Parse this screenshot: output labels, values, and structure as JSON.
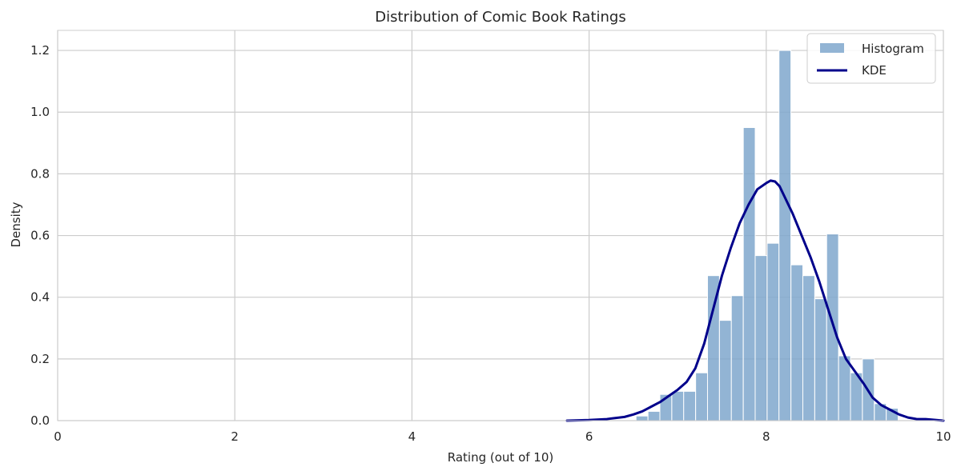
{
  "chart_data": {
    "type": "bar",
    "title": "Distribution of Comic Book Ratings",
    "xlabel": "Rating (out of 10)",
    "ylabel": "Density",
    "xlim": [
      0,
      10
    ],
    "ylim": [
      0,
      1.265
    ],
    "xticks": [
      0,
      2,
      4,
      6,
      8,
      10
    ],
    "xtick_labels": [
      "0",
      "2",
      "4",
      "6",
      "8",
      "10"
    ],
    "yticks": [
      0.0,
      0.2,
      0.4,
      0.6,
      0.8,
      1.0,
      1.2
    ],
    "ytick_labels": [
      "0.0",
      "0.2",
      "0.4",
      "0.6",
      "0.8",
      "1.0",
      "1.2"
    ],
    "grid": true,
    "legend_position": "top-right",
    "histogram": {
      "name": "Histogram",
      "color": "#7fa7cc",
      "bin_width": 0.1345,
      "bin_starts": [
        6.53,
        6.665,
        6.799,
        6.934,
        7.068,
        7.203,
        7.337,
        7.472,
        7.606,
        7.741,
        7.875,
        8.01,
        8.144,
        8.279,
        8.413,
        8.548,
        8.682,
        8.817,
        8.951,
        9.086,
        9.221,
        9.355
      ],
      "values": [
        0.015,
        0.03,
        0.085,
        0.095,
        0.095,
        0.155,
        0.47,
        0.325,
        0.405,
        0.95,
        0.535,
        0.575,
        1.2,
        0.505,
        0.47,
        0.395,
        0.605,
        0.21,
        0.155,
        0.2,
        0.055,
        0.04
      ]
    },
    "kde": {
      "name": "KDE",
      "color": "#00008b",
      "x": [
        5.75,
        6.0,
        6.2,
        6.4,
        6.5,
        6.6,
        6.7,
        6.8,
        6.9,
        7.0,
        7.1,
        7.2,
        7.3,
        7.4,
        7.5,
        7.6,
        7.7,
        7.8,
        7.9,
        8.0,
        8.05,
        8.1,
        8.15,
        8.2,
        8.3,
        8.4,
        8.5,
        8.6,
        8.7,
        8.8,
        8.9,
        9.0,
        9.1,
        9.2,
        9.3,
        9.4,
        9.5,
        9.6,
        9.7,
        9.8,
        10.0
      ],
      "y": [
        0.0,
        0.002,
        0.005,
        0.012,
        0.02,
        0.03,
        0.045,
        0.06,
        0.08,
        0.1,
        0.125,
        0.17,
        0.25,
        0.36,
        0.47,
        0.56,
        0.64,
        0.7,
        0.75,
        0.77,
        0.778,
        0.775,
        0.76,
        0.73,
        0.67,
        0.6,
        0.53,
        0.45,
        0.36,
        0.27,
        0.2,
        0.16,
        0.12,
        0.075,
        0.05,
        0.035,
        0.02,
        0.01,
        0.005,
        0.005,
        0.0
      ]
    }
  }
}
